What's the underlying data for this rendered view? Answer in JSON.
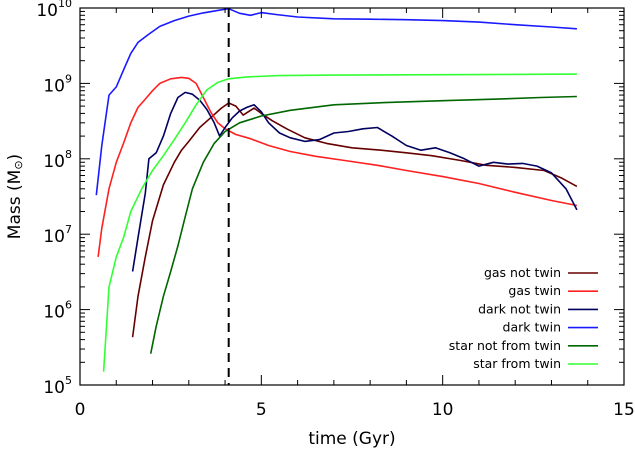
{
  "chart_data": {
    "type": "line",
    "xlabel": "time (Gyr)",
    "ylabel_prefix": "Mass (M",
    "ylabel_symbol": "⊙",
    "ylabel_suffix": ")",
    "xlim": [
      0,
      15
    ],
    "ylim": [
      100000,
      10000000000
    ],
    "yscale": "log",
    "xticks": [
      0,
      5,
      10,
      15
    ],
    "yticks": [
      {
        "base": "10",
        "exp": "5",
        "value": 100000
      },
      {
        "base": "10",
        "exp": "6",
        "value": 1000000
      },
      {
        "base": "10",
        "exp": "7",
        "value": 10000000
      },
      {
        "base": "10",
        "exp": "8",
        "value": 100000000
      },
      {
        "base": "10",
        "exp": "9",
        "value": 1000000000
      },
      {
        "base": "10",
        "exp": "10",
        "value": 10000000000
      }
    ],
    "vline": {
      "x": 4.1,
      "style": "dashed"
    },
    "legend_position": "bottom-right",
    "series": [
      {
        "name": "gas not twin",
        "color": "#660000",
        "points": [
          [
            1.45,
            430000
          ],
          [
            1.6,
            1500000
          ],
          [
            1.8,
            5000000
          ],
          [
            2.0,
            15000000
          ],
          [
            2.3,
            45000000
          ],
          [
            2.6,
            90000000
          ],
          [
            2.8,
            130000000
          ],
          [
            3.0,
            170000000
          ],
          [
            3.3,
            260000000
          ],
          [
            3.6,
            350000000
          ],
          [
            3.9,
            470000000
          ],
          [
            4.1,
            550000000
          ],
          [
            4.3,
            500000000
          ],
          [
            4.5,
            380000000
          ],
          [
            4.8,
            470000000
          ],
          [
            5.0,
            400000000
          ],
          [
            5.3,
            320000000
          ],
          [
            5.7,
            250000000
          ],
          [
            6.2,
            190000000
          ],
          [
            6.8,
            160000000
          ],
          [
            7.5,
            140000000
          ],
          [
            8.3,
            130000000
          ],
          [
            9.0,
            120000000
          ],
          [
            9.7,
            110000000
          ],
          [
            10.5,
            95000000
          ],
          [
            11.2,
            82000000
          ],
          [
            12.0,
            77000000
          ],
          [
            12.8,
            70000000
          ],
          [
            13.3,
            55000000
          ],
          [
            13.7,
            43000000
          ]
        ]
      },
      {
        "name": "gas twin",
        "color": "#ff2020",
        "points": [
          [
            0.5,
            5000000
          ],
          [
            0.6,
            12000000
          ],
          [
            0.8,
            40000000
          ],
          [
            1.0,
            90000000
          ],
          [
            1.2,
            160000000
          ],
          [
            1.4,
            300000000
          ],
          [
            1.6,
            480000000
          ],
          [
            1.8,
            620000000
          ],
          [
            2.0,
            800000000
          ],
          [
            2.2,
            1000000000
          ],
          [
            2.5,
            1150000000
          ],
          [
            2.8,
            1200000000
          ],
          [
            3.0,
            1170000000
          ],
          [
            3.2,
            1000000000
          ],
          [
            3.4,
            650000000
          ],
          [
            3.6,
            420000000
          ],
          [
            3.8,
            300000000
          ],
          [
            4.0,
            250000000
          ],
          [
            4.3,
            210000000
          ],
          [
            4.7,
            185000000
          ],
          [
            5.2,
            150000000
          ],
          [
            5.8,
            125000000
          ],
          [
            6.5,
            108000000
          ],
          [
            7.3,
            95000000
          ],
          [
            8.2,
            82000000
          ],
          [
            9.0,
            70000000
          ],
          [
            10.0,
            58000000
          ],
          [
            11.0,
            47000000
          ],
          [
            12.0,
            36000000
          ],
          [
            13.0,
            28000000
          ],
          [
            13.7,
            24000000
          ]
        ]
      },
      {
        "name": "dark not twin",
        "color": "#000060",
        "points": [
          [
            1.45,
            3200000
          ],
          [
            1.6,
            9000000
          ],
          [
            1.8,
            35000000
          ],
          [
            1.9,
            100000000
          ],
          [
            2.1,
            120000000
          ],
          [
            2.3,
            200000000
          ],
          [
            2.5,
            400000000
          ],
          [
            2.7,
            650000000
          ],
          [
            2.9,
            760000000
          ],
          [
            3.1,
            720000000
          ],
          [
            3.3,
            600000000
          ],
          [
            3.5,
            450000000
          ],
          [
            3.7,
            300000000
          ],
          [
            3.85,
            200000000
          ],
          [
            4.0,
            260000000
          ],
          [
            4.2,
            350000000
          ],
          [
            4.4,
            430000000
          ],
          [
            4.6,
            480000000
          ],
          [
            4.8,
            520000000
          ],
          [
            5.0,
            420000000
          ],
          [
            5.2,
            300000000
          ],
          [
            5.5,
            220000000
          ],
          [
            5.8,
            190000000
          ],
          [
            6.2,
            170000000
          ],
          [
            6.6,
            180000000
          ],
          [
            7.0,
            220000000
          ],
          [
            7.4,
            230000000
          ],
          [
            7.8,
            250000000
          ],
          [
            8.2,
            260000000
          ],
          [
            8.6,
            200000000
          ],
          [
            9.0,
            150000000
          ],
          [
            9.4,
            130000000
          ],
          [
            9.8,
            140000000
          ],
          [
            10.2,
            120000000
          ],
          [
            10.6,
            100000000
          ],
          [
            11.0,
            80000000
          ],
          [
            11.4,
            90000000
          ],
          [
            11.8,
            85000000
          ],
          [
            12.2,
            87000000
          ],
          [
            12.6,
            80000000
          ],
          [
            13.0,
            65000000
          ],
          [
            13.4,
            40000000
          ],
          [
            13.7,
            21000000
          ]
        ]
      },
      {
        "name": "dark twin",
        "color": "#1a1aff",
        "points": [
          [
            0.45,
            33000000
          ],
          [
            0.6,
            150000000
          ],
          [
            0.8,
            700000000
          ],
          [
            1.0,
            900000000
          ],
          [
            1.2,
            1500000000
          ],
          [
            1.4,
            2500000000
          ],
          [
            1.6,
            3500000000
          ],
          [
            1.9,
            4500000000
          ],
          [
            2.2,
            5700000000
          ],
          [
            2.6,
            6800000000
          ],
          [
            3.0,
            7800000000
          ],
          [
            3.4,
            8600000000
          ],
          [
            3.8,
            9300000000
          ],
          [
            4.1,
            9800000000
          ],
          [
            4.4,
            8500000000
          ],
          [
            4.7,
            8000000000
          ],
          [
            5.0,
            8700000000
          ],
          [
            5.4,
            8200000000
          ],
          [
            6.0,
            7600000000
          ],
          [
            7.0,
            7200000000
          ],
          [
            8.0,
            7100000000
          ],
          [
            9.0,
            7000000000
          ],
          [
            10.0,
            6800000000
          ],
          [
            11.0,
            6500000000
          ],
          [
            12.0,
            6000000000
          ],
          [
            13.0,
            5600000000
          ],
          [
            13.7,
            5300000000
          ]
        ]
      },
      {
        "name": "star not from twin",
        "color": "#006600",
        "points": [
          [
            1.95,
            260000
          ],
          [
            2.1,
            600000
          ],
          [
            2.3,
            1500000
          ],
          [
            2.5,
            3200000
          ],
          [
            2.7,
            7000000
          ],
          [
            2.9,
            17000000
          ],
          [
            3.1,
            40000000
          ],
          [
            3.4,
            90000000
          ],
          [
            3.7,
            160000000
          ],
          [
            4.0,
            230000000
          ],
          [
            4.4,
            300000000
          ],
          [
            5.0,
            370000000
          ],
          [
            5.8,
            440000000
          ],
          [
            7.0,
            520000000
          ],
          [
            8.5,
            560000000
          ],
          [
            10.0,
            590000000
          ],
          [
            11.5,
            620000000
          ],
          [
            12.7,
            650000000
          ],
          [
            13.7,
            670000000
          ]
        ]
      },
      {
        "name": "star from twin",
        "color": "#33ff33",
        "points": [
          [
            0.65,
            150000
          ],
          [
            0.8,
            2000000
          ],
          [
            1.0,
            5000000
          ],
          [
            1.2,
            9000000
          ],
          [
            1.4,
            20000000
          ],
          [
            1.7,
            40000000
          ],
          [
            2.0,
            70000000
          ],
          [
            2.3,
            110000000
          ],
          [
            2.6,
            180000000
          ],
          [
            2.9,
            300000000
          ],
          [
            3.2,
            520000000
          ],
          [
            3.5,
            820000000
          ],
          [
            3.8,
            1030000000
          ],
          [
            4.1,
            1150000000
          ],
          [
            4.6,
            1220000000
          ],
          [
            5.5,
            1270000000
          ],
          [
            7.0,
            1290000000
          ],
          [
            9.0,
            1300000000
          ],
          [
            11.0,
            1310000000
          ],
          [
            12.5,
            1320000000
          ],
          [
            13.7,
            1330000000
          ]
        ]
      }
    ]
  }
}
